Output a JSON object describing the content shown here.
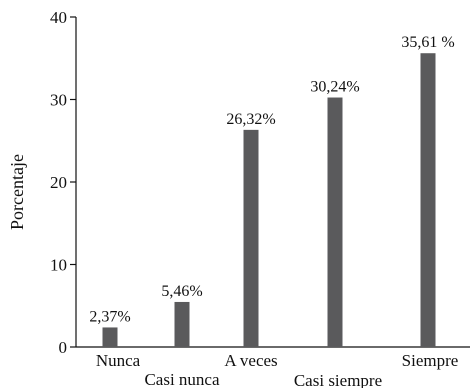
{
  "chart_data": {
    "type": "bar",
    "categories": [
      "Nunca",
      "Casi nunca",
      "A veces",
      "Casi siempre",
      "Siempre"
    ],
    "values": [
      2.37,
      5.46,
      26.32,
      30.24,
      35.61
    ],
    "value_labels": [
      "2,37%",
      "5,46%",
      "26,32%",
      "30,24%",
      "35,61 %"
    ],
    "title": "",
    "xlabel": "",
    "ylabel": "Porcentaje",
    "ylim": [
      0,
      40
    ],
    "yticks": [
      0,
      10,
      20,
      30,
      40
    ],
    "ytick_labels": [
      "0",
      "10",
      "20",
      "30",
      "40"
    ],
    "grid": false,
    "bar_color": "#5a5a5c"
  }
}
